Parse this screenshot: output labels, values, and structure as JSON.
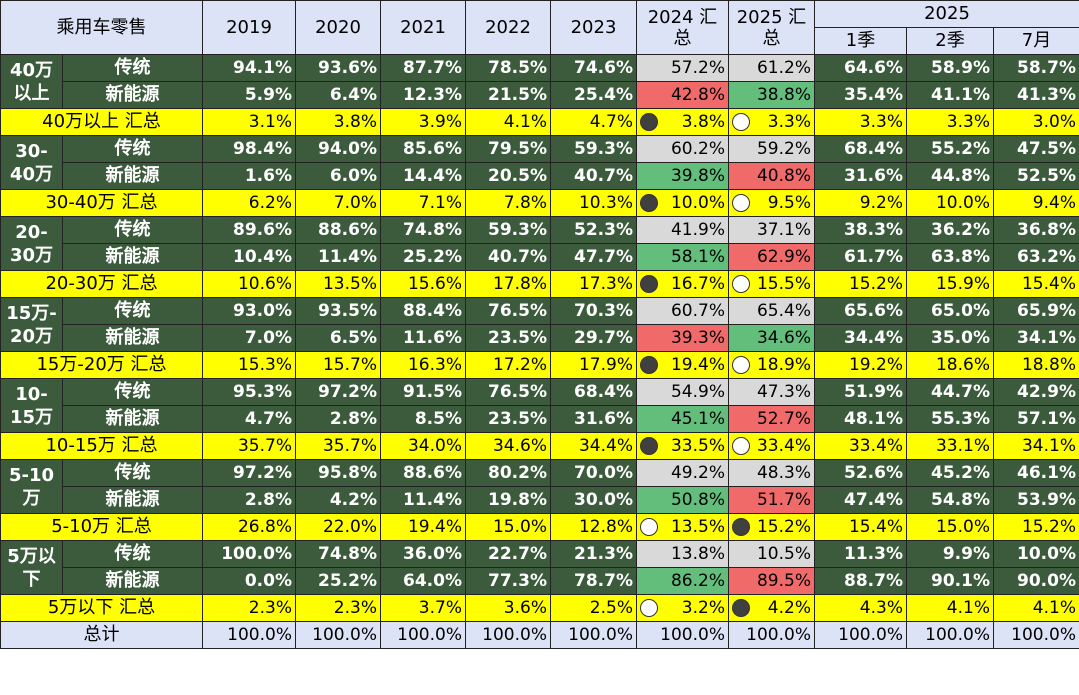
{
  "header": {
    "title": "乘用车零售",
    "years": [
      "2019",
      "2020",
      "2021",
      "2022",
      "2023"
    ],
    "y2024_top": "2024 汇",
    "y2024_bottom": "总",
    "y2025_top": "2025 汇",
    "y2025_bottom": "总",
    "y2025_group": "2025",
    "sub": [
      "1季",
      "2季",
      "7月"
    ]
  },
  "groups": [
    {
      "label_top": "40万",
      "label_bottom": "以上",
      "rows": [
        {
          "label": "传统",
          "vals": [
            "94.1%",
            "93.6%",
            "87.7%",
            "78.5%",
            "74.6%"
          ],
          "v2024": "57.2%",
          "c2024": "gray",
          "v2025": "61.2%",
          "c2025": "gray",
          "sub": [
            "64.6%",
            "58.9%",
            "58.7%"
          ]
        },
        {
          "label": "新能源",
          "vals": [
            "5.9%",
            "6.4%",
            "12.3%",
            "21.5%",
            "25.4%"
          ],
          "v2024": "42.8%",
          "c2024": "red",
          "v2025": "38.8%",
          "c2025": "green",
          "sub": [
            "35.4%",
            "41.1%",
            "41.3%"
          ]
        }
      ],
      "summary": {
        "label": "40万以上 汇总",
        "vals": [
          "3.1%",
          "3.8%",
          "3.9%",
          "4.1%",
          "4.7%"
        ],
        "v2024": "3.8%",
        "d2024": "filled",
        "v2025": "3.3%",
        "d2025": "empty",
        "sub": [
          "3.3%",
          "3.3%",
          "3.0%"
        ]
      }
    },
    {
      "label_top": "30-",
      "label_bottom": "40万",
      "rows": [
        {
          "label": "传统",
          "vals": [
            "98.4%",
            "94.0%",
            "85.6%",
            "79.5%",
            "59.3%"
          ],
          "v2024": "60.2%",
          "c2024": "gray",
          "v2025": "59.2%",
          "c2025": "gray",
          "sub": [
            "68.4%",
            "55.2%",
            "47.5%"
          ]
        },
        {
          "label": "新能源",
          "vals": [
            "1.6%",
            "6.0%",
            "14.4%",
            "20.5%",
            "40.7%"
          ],
          "v2024": "39.8%",
          "c2024": "green",
          "v2025": "40.8%",
          "c2025": "red",
          "sub": [
            "31.6%",
            "44.8%",
            "52.5%"
          ]
        }
      ],
      "summary": {
        "label": "30-40万 汇总",
        "vals": [
          "6.2%",
          "7.0%",
          "7.1%",
          "7.8%",
          "10.3%"
        ],
        "v2024": "10.0%",
        "d2024": "filled",
        "v2025": "9.5%",
        "d2025": "empty",
        "sub": [
          "9.2%",
          "10.0%",
          "9.4%"
        ]
      }
    },
    {
      "label_top": "20-",
      "label_bottom": "30万",
      "rows": [
        {
          "label": "传统",
          "vals": [
            "89.6%",
            "88.6%",
            "74.8%",
            "59.3%",
            "52.3%"
          ],
          "v2024": "41.9%",
          "c2024": "gray",
          "v2025": "37.1%",
          "c2025": "gray",
          "sub": [
            "38.3%",
            "36.2%",
            "36.8%"
          ]
        },
        {
          "label": "新能源",
          "vals": [
            "10.4%",
            "11.4%",
            "25.2%",
            "40.7%",
            "47.7%"
          ],
          "v2024": "58.1%",
          "c2024": "green",
          "v2025": "62.9%",
          "c2025": "red",
          "sub": [
            "61.7%",
            "63.8%",
            "63.2%"
          ]
        }
      ],
      "summary": {
        "label": "20-30万 汇总",
        "vals": [
          "10.6%",
          "13.5%",
          "15.6%",
          "17.8%",
          "17.3%"
        ],
        "v2024": "16.7%",
        "d2024": "filled",
        "v2025": "15.5%",
        "d2025": "empty",
        "sub": [
          "15.2%",
          "15.9%",
          "15.4%"
        ]
      }
    },
    {
      "label_top": "15万-",
      "label_bottom": "20万",
      "rows": [
        {
          "label": "传统",
          "vals": [
            "93.0%",
            "93.5%",
            "88.4%",
            "76.5%",
            "70.3%"
          ],
          "v2024": "60.7%",
          "c2024": "gray",
          "v2025": "65.4%",
          "c2025": "gray",
          "sub": [
            "65.6%",
            "65.0%",
            "65.9%"
          ]
        },
        {
          "label": "新能源",
          "vals": [
            "7.0%",
            "6.5%",
            "11.6%",
            "23.5%",
            "29.7%"
          ],
          "v2024": "39.3%",
          "c2024": "red",
          "v2025": "34.6%",
          "c2025": "green",
          "sub": [
            "34.4%",
            "35.0%",
            "34.1%"
          ]
        }
      ],
      "summary": {
        "label": "15万-20万 汇总",
        "vals": [
          "15.3%",
          "15.7%",
          "16.3%",
          "17.2%",
          "17.9%"
        ],
        "v2024": "19.4%",
        "d2024": "filled",
        "v2025": "18.9%",
        "d2025": "empty",
        "sub": [
          "19.2%",
          "18.6%",
          "18.8%"
        ]
      }
    },
    {
      "label_top": "10-",
      "label_bottom": "15万",
      "rows": [
        {
          "label": "传统",
          "vals": [
            "95.3%",
            "97.2%",
            "91.5%",
            "76.5%",
            "68.4%"
          ],
          "v2024": "54.9%",
          "c2024": "gray",
          "v2025": "47.3%",
          "c2025": "gray",
          "sub": [
            "51.9%",
            "44.7%",
            "42.9%"
          ]
        },
        {
          "label": "新能源",
          "vals": [
            "4.7%",
            "2.8%",
            "8.5%",
            "23.5%",
            "31.6%"
          ],
          "v2024": "45.1%",
          "c2024": "green",
          "v2025": "52.7%",
          "c2025": "red",
          "sub": [
            "48.1%",
            "55.3%",
            "57.1%"
          ]
        }
      ],
      "summary": {
        "label": "10-15万 汇总",
        "vals": [
          "35.7%",
          "35.7%",
          "34.0%",
          "34.6%",
          "34.4%"
        ],
        "v2024": "33.5%",
        "d2024": "filled",
        "v2025": "33.4%",
        "d2025": "empty",
        "sub": [
          "33.4%",
          "33.1%",
          "34.1%"
        ]
      }
    },
    {
      "label_top": "5-10",
      "label_bottom": "万",
      "rows": [
        {
          "label": "传统",
          "vals": [
            "97.2%",
            "95.8%",
            "88.6%",
            "80.2%",
            "70.0%"
          ],
          "v2024": "49.2%",
          "c2024": "gray",
          "v2025": "48.3%",
          "c2025": "gray",
          "sub": [
            "52.6%",
            "45.2%",
            "46.1%"
          ]
        },
        {
          "label": "新能源",
          "vals": [
            "2.8%",
            "4.2%",
            "11.4%",
            "19.8%",
            "30.0%"
          ],
          "v2024": "50.8%",
          "c2024": "green",
          "v2025": "51.7%",
          "c2025": "red",
          "sub": [
            "47.4%",
            "54.8%",
            "53.9%"
          ]
        }
      ],
      "summary": {
        "label": "5-10万 汇总",
        "vals": [
          "26.8%",
          "22.0%",
          "19.4%",
          "15.0%",
          "12.8%"
        ],
        "v2024": "13.5%",
        "d2024": "empty",
        "v2025": "15.2%",
        "d2025": "filled",
        "sub": [
          "15.4%",
          "15.0%",
          "15.2%"
        ]
      }
    },
    {
      "label_top": "5万以",
      "label_bottom": "下",
      "rows": [
        {
          "label": "传统",
          "vals": [
            "100.0%",
            "74.8%",
            "36.0%",
            "22.7%",
            "21.3%"
          ],
          "v2024": "13.8%",
          "c2024": "gray",
          "v2025": "10.5%",
          "c2025": "gray",
          "sub": [
            "11.3%",
            "9.9%",
            "10.0%"
          ]
        },
        {
          "label": "新能源",
          "vals": [
            "0.0%",
            "25.2%",
            "64.0%",
            "77.3%",
            "78.7%"
          ],
          "v2024": "86.2%",
          "c2024": "green",
          "v2025": "89.5%",
          "c2025": "red",
          "sub": [
            "88.7%",
            "90.1%",
            "90.0%"
          ]
        }
      ],
      "summary": {
        "label": "5万以下 汇总",
        "vals": [
          "2.3%",
          "2.3%",
          "3.7%",
          "3.6%",
          "2.5%"
        ],
        "v2024": "3.2%",
        "d2024": "empty",
        "v2025": "4.2%",
        "d2025": "filled",
        "sub": [
          "4.3%",
          "4.1%",
          "4.1%"
        ]
      }
    }
  ],
  "total": {
    "label": "总计",
    "vals": [
      "100.0%",
      "100.0%",
      "100.0%",
      "100.0%",
      "100.0%"
    ],
    "v2024": "100.0%",
    "v2025": "100.0%",
    "sub": [
      "100.0%",
      "100.0%",
      "100.0%"
    ]
  },
  "colors": {
    "dark_green": "#3b5b3c",
    "yellow": "#ffff00",
    "header_blue": "#dde3f6",
    "gray": "#d9d9d9",
    "red": "#f06a6a",
    "green": "#63be7b"
  }
}
